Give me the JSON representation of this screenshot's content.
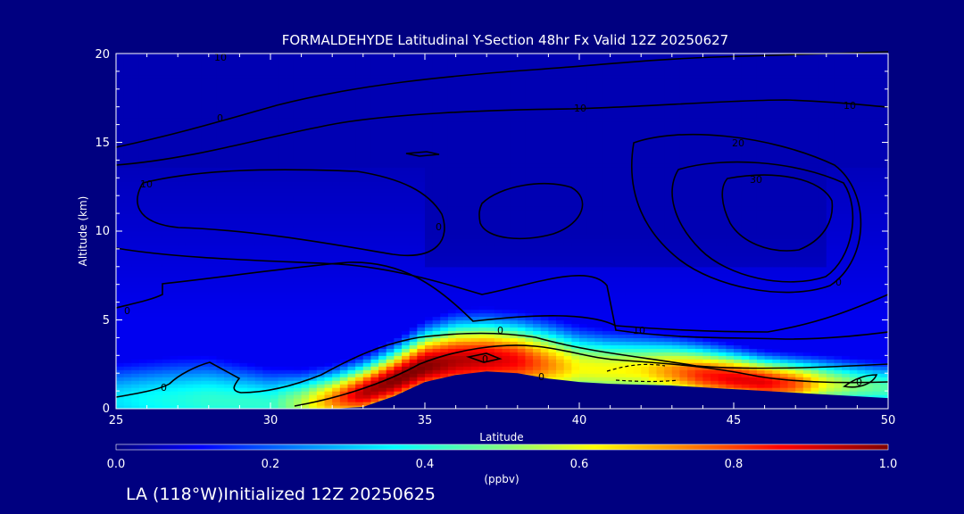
{
  "chart_data": {
    "type": "heatmap",
    "title": "FORMALDEHYDE Latitudinal Y-Section 48hr  Fx Valid 12Z 20250627",
    "xlabel": "Latitude",
    "ylabel": "Altitude (km)",
    "xlim": [
      25,
      50
    ],
    "ylim": [
      0,
      20
    ],
    "x_ticks": [
      "25",
      "30",
      "35",
      "40",
      "45",
      "50"
    ],
    "y_ticks": [
      "0",
      "5",
      "10",
      "15",
      "20"
    ],
    "colorbar": {
      "label": "(ppbv)",
      "ticks": [
        "0.0",
        "0.2",
        "0.4",
        "0.6",
        "0.8",
        "1.0"
      ],
      "range": [
        0.0,
        1.0
      ]
    },
    "field_lat": [
      25,
      26,
      27,
      28,
      29,
      30,
      31,
      32,
      33,
      34,
      35,
      36,
      37,
      38,
      39,
      40,
      41,
      42,
      43,
      44,
      45,
      46,
      47,
      48,
      49,
      50
    ],
    "surface_km": [
      0,
      0,
      0,
      0,
      0,
      0,
      0,
      0,
      0.1,
      0.7,
      1.5,
      1.9,
      2.1,
      2.0,
      1.7,
      1.5,
      1.4,
      1.35,
      1.3,
      1.2,
      1.1,
      1.0,
      0.9,
      0.8,
      0.7,
      0.6
    ],
    "peak_km": [
      0.5,
      0.5,
      0.5,
      0.5,
      0.4,
      0.3,
      0.3,
      0.5,
      0.9,
      1.6,
      2.4,
      2.7,
      2.8,
      2.7,
      2.5,
      2.3,
      2.2,
      2.2,
      2.1,
      1.9,
      1.7,
      1.5,
      1.4,
      1.4,
      1.3,
      1.2
    ],
    "peak_ppbv": [
      0.35,
      0.38,
      0.4,
      0.42,
      0.42,
      0.42,
      0.55,
      0.75,
      0.95,
      1.0,
      1.0,
      0.95,
      0.93,
      0.88,
      0.75,
      0.62,
      0.62,
      0.64,
      0.74,
      0.85,
      0.9,
      0.9,
      0.8,
      0.6,
      0.5,
      0.45
    ],
    "depth_km": [
      2.0,
      2.1,
      2.2,
      2.2,
      2.0,
      1.8,
      1.6,
      1.5,
      1.5,
      1.6,
      1.8,
      2.0,
      2.0,
      2.0,
      2.0,
      1.9,
      1.8,
      1.7,
      1.6,
      1.5,
      1.4,
      1.3,
      1.3,
      1.3,
      1.3,
      1.3
    ],
    "contour_labels": [
      "10",
      "0",
      "10",
      "10",
      "0",
      "10",
      "20",
      "30",
      "0",
      "0",
      "0",
      "0",
      "10",
      "0",
      "0",
      "0"
    ],
    "footer": "LA (118°W)Initialized 12Z 20250625"
  },
  "colors": {
    "background": "#000080",
    "text": "#ffffff",
    "contour": "#000000"
  }
}
